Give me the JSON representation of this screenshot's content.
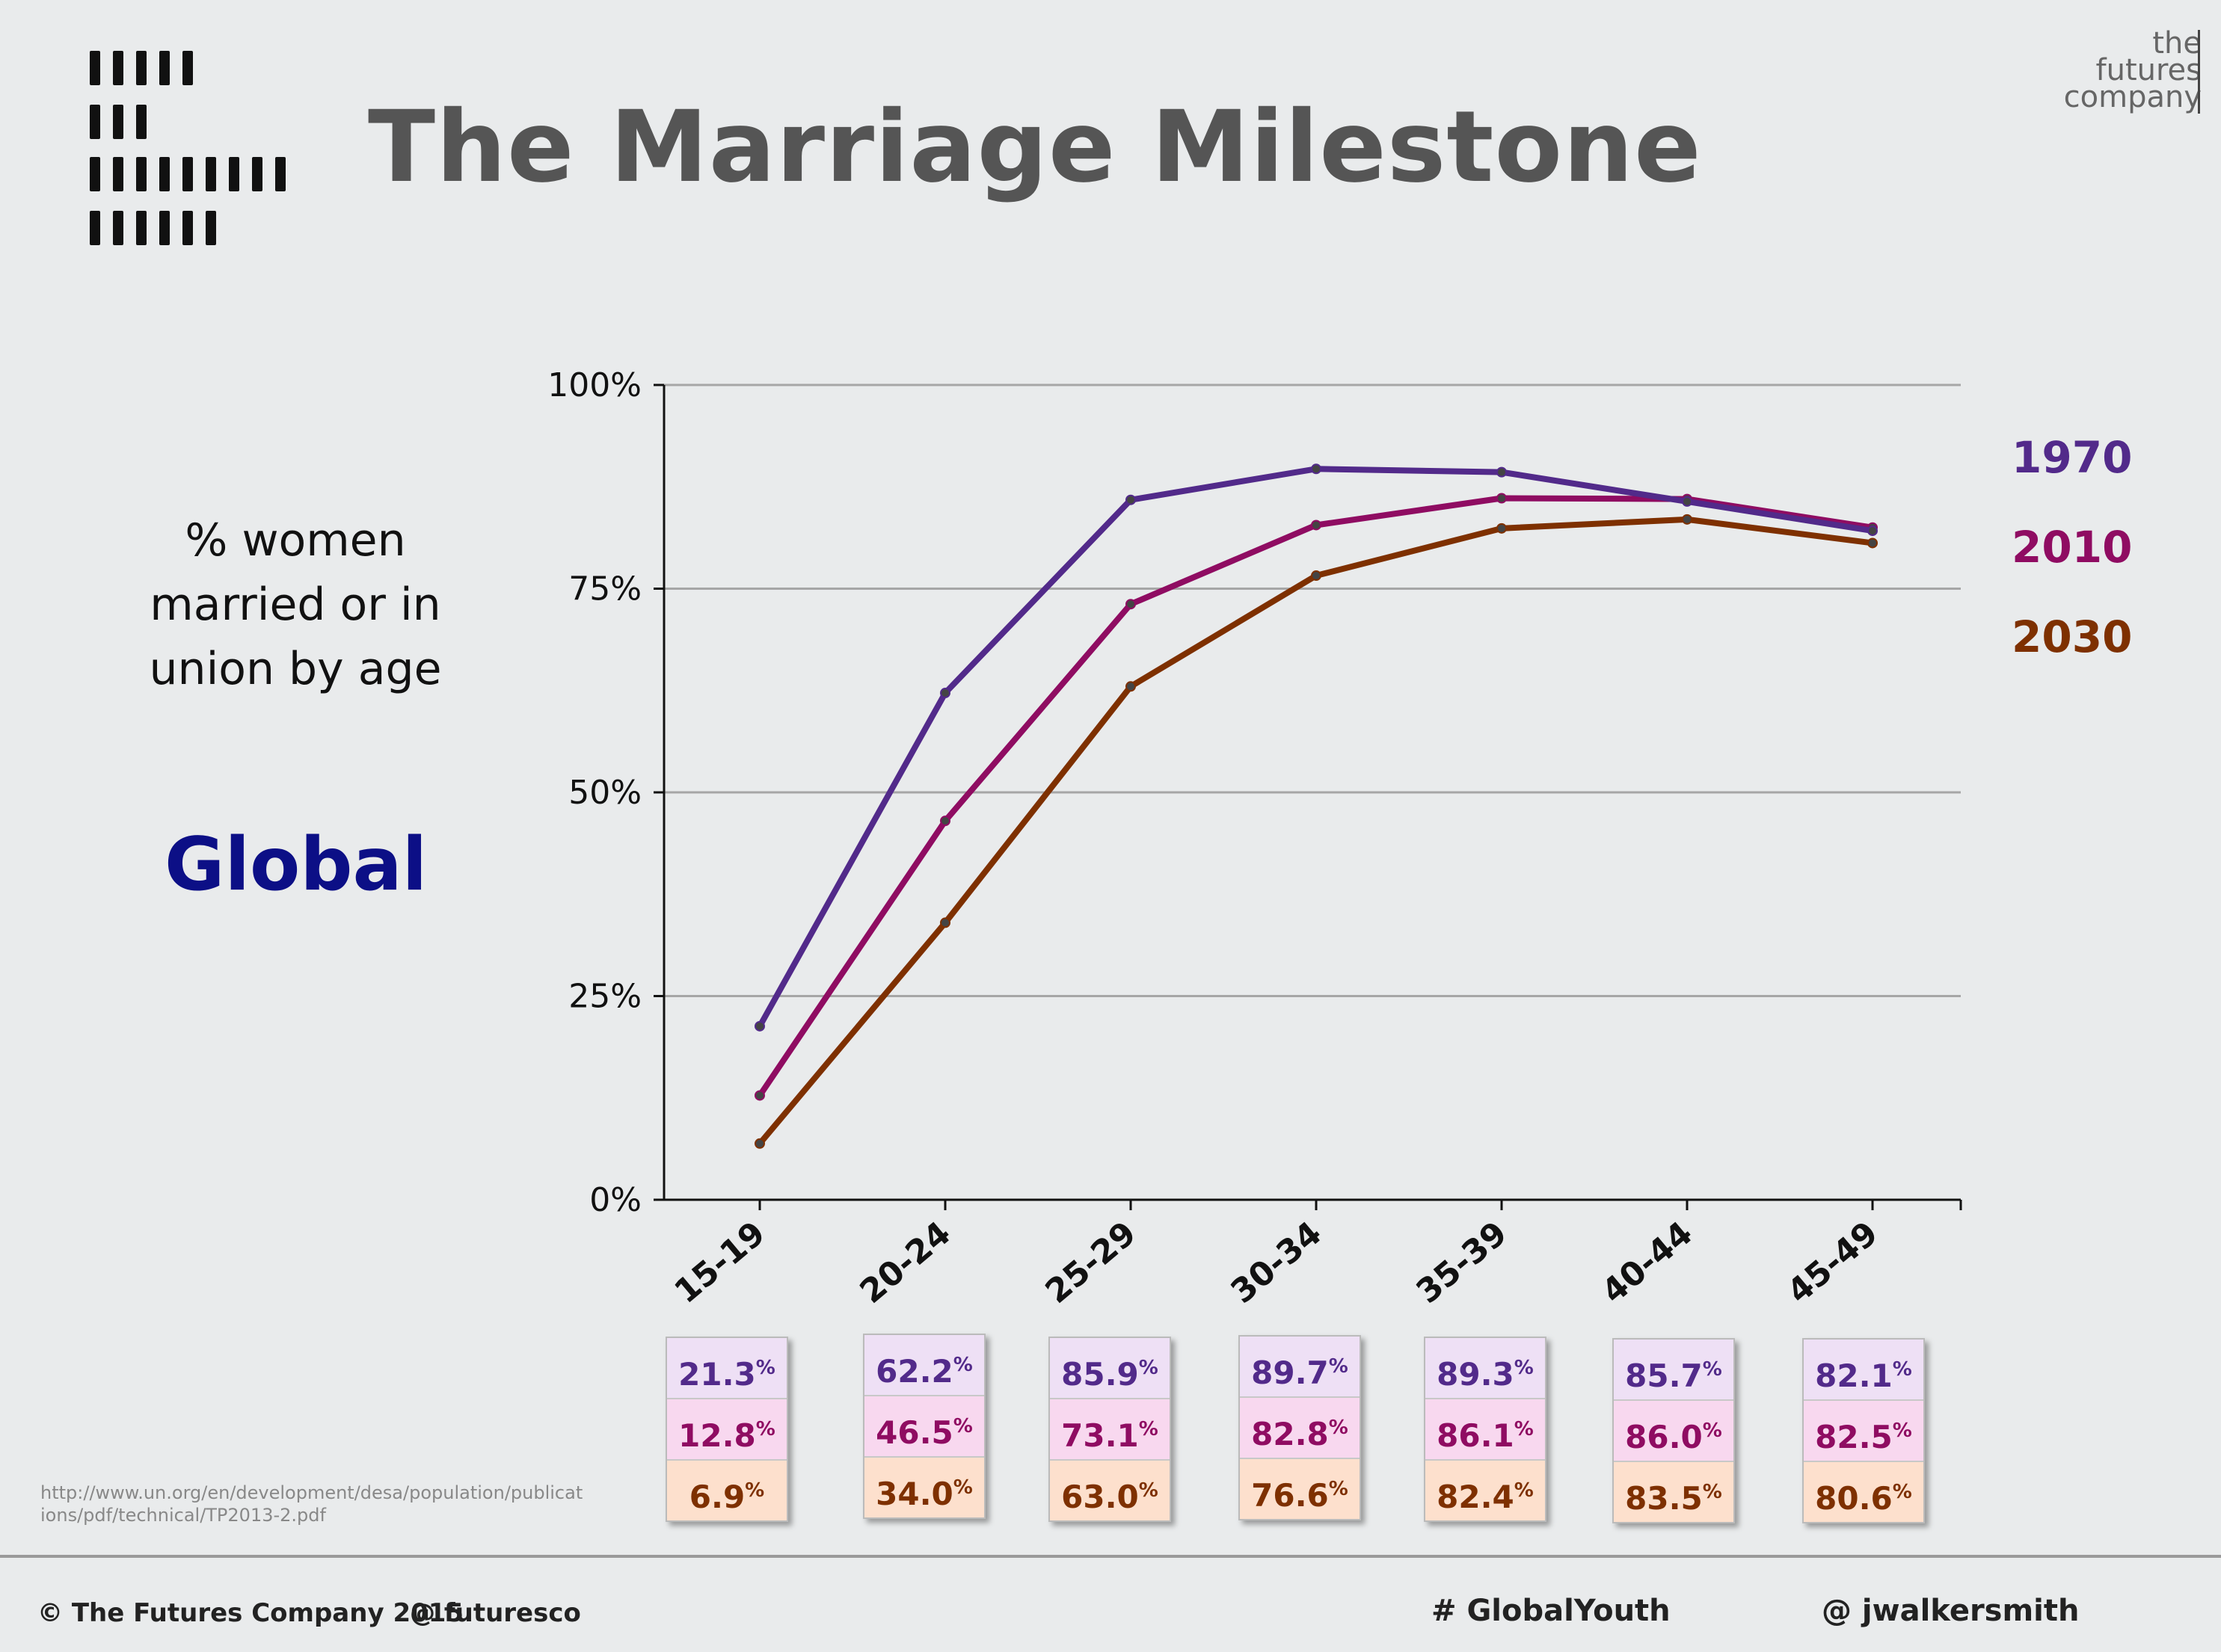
{
  "title": "The Marriage Milestone",
  "brand": {
    "line1": "the",
    "line2": "futures",
    "line3": "company"
  },
  "subtitle": "% women married or in union by age",
  "region": "Global",
  "colors": {
    "1970": "#522a8a",
    "2010": "#8f0c62",
    "2030": "#7e3000",
    "region": "#0c0f86",
    "title": "#555555"
  },
  "chart_data": {
    "type": "line",
    "title": "",
    "xlabel": "",
    "ylabel": "",
    "categories": [
      "15-19",
      "20-24",
      "25-29",
      "30-34",
      "35-39",
      "40-44",
      "45-49"
    ],
    "y_ticks": [
      "0%",
      "25%",
      "50%",
      "75%",
      "100%"
    ],
    "ylim": [
      0,
      100
    ],
    "grid": true,
    "legend_placement": "right",
    "series": [
      {
        "name": "1970",
        "color": "#522a8a",
        "values": [
          21.3,
          62.2,
          85.9,
          89.7,
          89.3,
          85.7,
          82.1
        ],
        "labels": [
          "21.3",
          "62.2",
          "85.9",
          "89.7",
          "89.3",
          "85.7",
          "82.1"
        ]
      },
      {
        "name": "2010",
        "color": "#8f0c62",
        "values": [
          12.8,
          46.5,
          73.1,
          82.8,
          86.1,
          86.0,
          82.5
        ],
        "labels": [
          "12.8",
          "46.5",
          "73.1",
          "82.8",
          "86.1",
          "86.0",
          "82.5"
        ]
      },
      {
        "name": "2030",
        "color": "#7e3000",
        "values": [
          6.9,
          34.0,
          63.0,
          76.6,
          82.4,
          83.5,
          80.6
        ],
        "labels": [
          "6.9",
          "34.0",
          "63.0",
          "76.6",
          "82.4",
          "83.5",
          "80.6"
        ]
      }
    ]
  },
  "source": "http://www.un.org/en/development/desa/population/publications/pdf/technical/TP2013-2.pdf",
  "footer": {
    "copyright": "©  The Futures Company 2015",
    "handle": "@ futuresco",
    "hashtag": "# GlobalYouth",
    "author": "@ jwalkersmith"
  }
}
